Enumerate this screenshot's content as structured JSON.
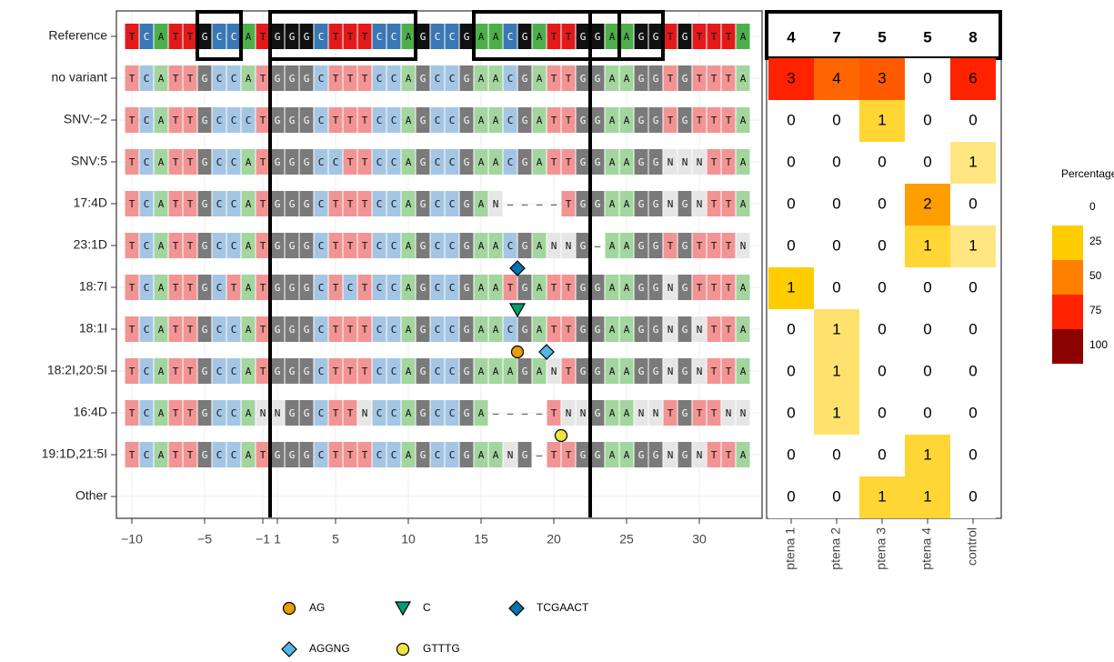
{
  "chart_data": {
    "type": "alignment",
    "xticks": [
      {
        "value": -10,
        "label": "−10"
      },
      {
        "value": -5,
        "label": "−5"
      },
      {
        "value": -1,
        "label": "−1"
      },
      1,
      5,
      10,
      15,
      20,
      25,
      30
    ],
    "cut_lines": [
      0,
      22.5
    ],
    "boxes": [
      {
        "from": -5,
        "to": -3
      },
      {
        "from": 1,
        "to": 10
      },
      {
        "from": 15,
        "to": 27
      },
      {
        "from": 25,
        "to": 27
      }
    ],
    "base_colors": {
      "reference": {
        "T": "#e31a1c",
        "C": "#3a78b5",
        "A": "#4daf4a",
        "G": "#111111"
      },
      "variant": {
        "T": "#f29494",
        "C": "#a4c6e4",
        "A": "#a3d59e",
        "G": "#7a7a7a",
        "N": "#e6e6e6"
      }
    },
    "rows": [
      {
        "label": "Reference",
        "sequence": [
          "T",
          "C",
          "A",
          "T",
          "T",
          "G",
          "C",
          "C",
          "A",
          "T",
          "G",
          "G",
          "G",
          "C",
          "T",
          "T",
          "T",
          "C",
          "C",
          "A",
          "G",
          "C",
          "C",
          "G",
          "A",
          "A",
          "C",
          "G",
          "A",
          "T",
          "T",
          "G",
          "G",
          "A",
          "A",
          "G",
          "G",
          "T",
          "G",
          "T",
          "T",
          "T",
          "A"
        ]
      },
      {
        "label": "no variant",
        "sequence": [
          "T",
          "C",
          "A",
          "T",
          "T",
          "G",
          "C",
          "C",
          "A",
          "T",
          "G",
          "G",
          "G",
          "C",
          "T",
          "T",
          "T",
          "C",
          "C",
          "A",
          "G",
          "C",
          "C",
          "G",
          "A",
          "A",
          "C",
          "G",
          "A",
          "T",
          "T",
          "G",
          "G",
          "A",
          "A",
          "G",
          "G",
          "T",
          "G",
          "T",
          "T",
          "T",
          "A"
        ],
        "counts": [
          3,
          4,
          3,
          0,
          6
        ]
      },
      {
        "label": "SNV:−2",
        "sequence": [
          "T",
          "C",
          "A",
          "T",
          "T",
          "G",
          "C",
          "C",
          "C",
          "T",
          "G",
          "G",
          "G",
          "C",
          "T",
          "T",
          "T",
          "C",
          "C",
          "A",
          "G",
          "C",
          "C",
          "G",
          "A",
          "A",
          "C",
          "G",
          "A",
          "T",
          "T",
          "G",
          "G",
          "A",
          "A",
          "G",
          "G",
          "T",
          "G",
          "T",
          "T",
          "T",
          "A"
        ],
        "counts": [
          0,
          0,
          1,
          0,
          0
        ]
      },
      {
        "label": "SNV:5",
        "sequence": [
          "T",
          "C",
          "A",
          "T",
          "T",
          "G",
          "C",
          "C",
          "A",
          "T",
          "G",
          "G",
          "G",
          "C",
          "C",
          "T",
          "T",
          "C",
          "C",
          "A",
          "G",
          "C",
          "C",
          "G",
          "A",
          "A",
          "C",
          "G",
          "A",
          "T",
          "T",
          "G",
          "G",
          "A",
          "A",
          "G",
          "G",
          "N",
          "N",
          "N",
          "T",
          "T",
          "A"
        ],
        "counts": [
          0,
          0,
          0,
          0,
          1
        ]
      },
      {
        "label": "17:4D",
        "sequence": [
          "T",
          "C",
          "A",
          "T",
          "T",
          "G",
          "C",
          "C",
          "A",
          "T",
          "G",
          "G",
          "G",
          "C",
          "T",
          "T",
          "T",
          "C",
          "C",
          "A",
          "G",
          "C",
          "C",
          "G",
          "A",
          "N",
          "–",
          "–",
          "–",
          "–",
          "T",
          "G",
          "G",
          "A",
          "A",
          "G",
          "G",
          "N",
          "G",
          "N",
          "T",
          "T",
          "A"
        ],
        "counts": [
          0,
          0,
          0,
          2,
          0
        ]
      },
      {
        "label": "23:1D",
        "sequence": [
          "T",
          "C",
          "A",
          "T",
          "T",
          "G",
          "C",
          "C",
          "A",
          "T",
          "G",
          "G",
          "G",
          "C",
          "T",
          "T",
          "T",
          "C",
          "C",
          "A",
          "G",
          "C",
          "C",
          "G",
          "A",
          "A",
          "C",
          "G",
          "A",
          "N",
          "N",
          "G",
          "–",
          "A",
          "A",
          "G",
          "G",
          "T",
          "G",
          "T",
          "T",
          "T",
          "N"
        ],
        "counts": [
          0,
          0,
          0,
          1,
          1
        ]
      },
      {
        "label": "18:7I",
        "sequence": [
          "T",
          "C",
          "A",
          "T",
          "T",
          "G",
          "C",
          "T",
          "A",
          "T",
          "G",
          "G",
          "G",
          "C",
          "T",
          "C",
          "T",
          "C",
          "C",
          "A",
          "G",
          "C",
          "C",
          "G",
          "A",
          "A",
          "T",
          "G",
          "A",
          "T",
          "T",
          "G",
          "G",
          "A",
          "A",
          "G",
          "G",
          "N",
          "G",
          "T",
          "T",
          "T",
          "A"
        ],
        "counts": [
          1,
          0,
          0,
          0,
          0
        ],
        "insertions": [
          {
            "position": 17.5,
            "sequence": "TCGAACT"
          }
        ]
      },
      {
        "label": "18:1I",
        "sequence": [
          "T",
          "C",
          "A",
          "T",
          "T",
          "G",
          "C",
          "C",
          "A",
          "T",
          "G",
          "G",
          "G",
          "C",
          "T",
          "T",
          "T",
          "C",
          "C",
          "A",
          "G",
          "C",
          "C",
          "G",
          "A",
          "A",
          "C",
          "G",
          "A",
          "T",
          "T",
          "G",
          "G",
          "A",
          "A",
          "G",
          "G",
          "N",
          "G",
          "N",
          "T",
          "T",
          "A"
        ],
        "counts": [
          0,
          1,
          0,
          0,
          0
        ],
        "insertions": [
          {
            "position": 17.5,
            "sequence": "C"
          }
        ]
      },
      {
        "label": "18:2I,20:5I",
        "sequence": [
          "T",
          "C",
          "A",
          "T",
          "T",
          "G",
          "C",
          "C",
          "A",
          "T",
          "G",
          "G",
          "G",
          "C",
          "T",
          "T",
          "T",
          "C",
          "C",
          "A",
          "G",
          "C",
          "C",
          "G",
          "A",
          "A",
          "A",
          "G",
          "A",
          "N",
          "T",
          "G",
          "G",
          "A",
          "A",
          "G",
          "G",
          "N",
          "G",
          "N",
          "T",
          "T",
          "A"
        ],
        "counts": [
          0,
          1,
          0,
          0,
          0
        ],
        "insertions": [
          {
            "position": 17.5,
            "sequence": "AG"
          },
          {
            "position": 19.5,
            "sequence": "AGGNG"
          }
        ]
      },
      {
        "label": "16:4D",
        "sequence": [
          "T",
          "C",
          "A",
          "T",
          "T",
          "G",
          "C",
          "C",
          "A",
          "N",
          "N",
          "G",
          "G",
          "C",
          "T",
          "T",
          "N",
          "C",
          "C",
          "A",
          "G",
          "C",
          "C",
          "G",
          "A",
          "–",
          "–",
          "–",
          "–",
          "T",
          "N",
          "N",
          "G",
          "A",
          "A",
          "N",
          "N",
          "T",
          "G",
          "T",
          "T",
          "N",
          "N"
        ],
        "counts": [
          0,
          1,
          0,
          0,
          0
        ]
      },
      {
        "label": "19:1D,21:5I",
        "sequence": [
          "T",
          "C",
          "A",
          "T",
          "T",
          "G",
          "C",
          "C",
          "A",
          "T",
          "G",
          "G",
          "G",
          "C",
          "T",
          "T",
          "T",
          "C",
          "C",
          "A",
          "G",
          "C",
          "C",
          "G",
          "A",
          "A",
          "N",
          "G",
          "–",
          "T",
          "T",
          "G",
          "G",
          "A",
          "A",
          "G",
          "G",
          "N",
          "G",
          "N",
          "T",
          "T",
          "A"
        ],
        "counts": [
          0,
          0,
          0,
          1,
          0
        ],
        "insertions": [
          {
            "position": 20.5,
            "sequence": "GTTTG"
          }
        ]
      },
      {
        "label": "Other",
        "sequence": [],
        "counts": [
          0,
          0,
          1,
          1,
          0
        ]
      }
    ],
    "samples": [
      "ptena 1",
      "ptena 2",
      "ptena 3",
      "ptena 4",
      "control"
    ],
    "totals": [
      4,
      7,
      5,
      5,
      8
    ],
    "legend_title": "Percentage",
    "scale": [
      {
        "value": 0,
        "color": "#ffffff"
      },
      {
        "value": 25,
        "color": "#ffcc00"
      },
      {
        "value": 50,
        "color": "#ff8000"
      },
      {
        "value": 75,
        "color": "#ff2200"
      },
      {
        "value": 100,
        "color": "#8b0000"
      }
    ],
    "insertion_legend": [
      {
        "name": "AG",
        "color": "#e69f00",
        "shape": "circle"
      },
      {
        "name": "C",
        "color": "#009e73",
        "shape": "triangle"
      },
      {
        "name": "TCGAACT",
        "color": "#0072b2",
        "shape": "diamond"
      },
      {
        "name": "AGGNG",
        "color": "#56b4e9",
        "shape": "diamond"
      },
      {
        "name": "GTTTG",
        "color": "#f0e442",
        "shape": "circle"
      }
    ]
  }
}
